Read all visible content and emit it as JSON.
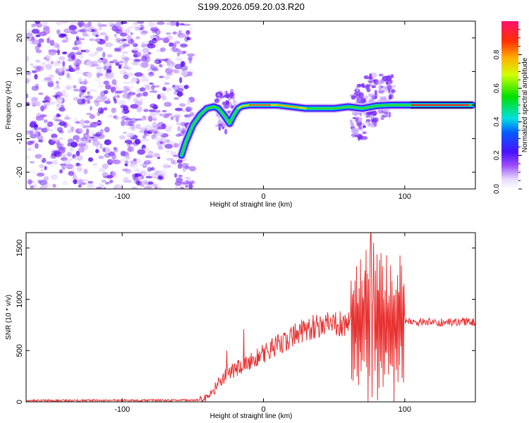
{
  "title": "S199.2026.059.20.03.R20",
  "chart_data": [
    {
      "type": "heatmap",
      "name": "spectrogram",
      "xlabel": "Height of straight line (km)",
      "ylabel": "Frequency (Hz)",
      "xlim": [
        -168,
        150
      ],
      "ylim": [
        -25,
        25
      ],
      "xticks": [
        -100,
        0,
        100
      ],
      "yticks": [
        -20,
        -10,
        0,
        10,
        20
      ],
      "ridge": {
        "x": [
          -58,
          -55,
          -50,
          -45,
          -40,
          -35,
          -32,
          -28,
          -24,
          -21,
          -18,
          -15,
          -10,
          -5,
          0,
          10,
          20,
          30,
          40,
          50,
          60,
          70,
          80,
          90,
          100,
          110,
          120,
          130,
          140,
          148
        ],
        "y": [
          -15,
          -11,
          -6,
          -3,
          -1,
          -0.5,
          -1,
          -3,
          -5.5,
          -3,
          -1,
          -0.3,
          0,
          0,
          0,
          0,
          -0.5,
          -1,
          -1,
          -1,
          -0.5,
          -1,
          -0.2,
          0,
          0,
          0,
          0,
          0,
          0,
          0
        ]
      },
      "noise_region_x": [
        -168,
        -54
      ],
      "colorbar": {
        "label": "Normalized spectral amplitude",
        "ticks": [
          0.0,
          0.2,
          0.4,
          0.6,
          0.8
        ],
        "tick_labels": [
          "0.0",
          "0.2",
          "0.4",
          "0.6",
          "0.8"
        ],
        "range": [
          0,
          1
        ]
      }
    },
    {
      "type": "line",
      "name": "snr",
      "xlabel": "Height of straight line (km)",
      "ylabel": "SNR (10 * v/v)",
      "xlim": [
        -168,
        150
      ],
      "ylim": [
        0,
        1650
      ],
      "xticks": [
        -100,
        0,
        100
      ],
      "yticks": [
        0,
        500,
        1000,
        1500
      ],
      "color": "#e83030",
      "envelope": {
        "x": [
          -168,
          -60,
          -42,
          -37,
          -30,
          -20,
          -10,
          0,
          10,
          20,
          30,
          40,
          50,
          55,
          60,
          65,
          70,
          75,
          80,
          85,
          90,
          95,
          100,
          110,
          120,
          130,
          140,
          150
        ],
        "y": [
          12,
          15,
          20,
          80,
          220,
          320,
          400,
          470,
          560,
          640,
          710,
          740,
          750,
          760,
          780,
          790,
          780,
          760,
          760,
          760,
          760,
          770,
          790,
          780,
          780,
          770,
          780,
          780
        ]
      },
      "spikes": [
        {
          "x": -14,
          "y": 710
        },
        {
          "x": -26,
          "y": 500
        },
        {
          "x": 76,
          "y": 1650
        },
        {
          "x": 78,
          "y": 1550
        },
        {
          "x": 87,
          "y": 1430
        },
        {
          "x": 90,
          "y": 1330
        },
        {
          "x": 72,
          "y": 1280
        }
      ]
    }
  ]
}
